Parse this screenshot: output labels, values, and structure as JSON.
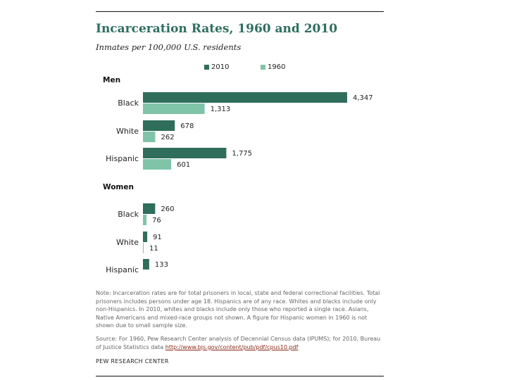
{
  "chart_data": {
    "type": "bar",
    "orientation": "horizontal",
    "title": "Incarceration Rates, 1960 and 2010",
    "subtitle": "Inmates per 100,000 U.S. residents",
    "legend": [
      "2010",
      "1960"
    ],
    "colors": {
      "2010": "#2f6e5b",
      "1960": "#7fc4a8"
    },
    "groups": [
      {
        "name": "Men",
        "categories": [
          {
            "label": "Black",
            "values": {
              "2010": 4347,
              "1960": 1313
            },
            "labels": {
              "2010": "4,347",
              "1960": "1,313"
            }
          },
          {
            "label": "White",
            "values": {
              "2010": 678,
              "1960": 262
            },
            "labels": {
              "2010": "678",
              "1960": "262"
            }
          },
          {
            "label": "Hispanic",
            "values": {
              "2010": 1775,
              "1960": 601
            },
            "labels": {
              "2010": "1,775",
              "1960": "601"
            }
          }
        ]
      },
      {
        "name": "Women",
        "categories": [
          {
            "label": "Black",
            "values": {
              "2010": 260,
              "1960": 76
            },
            "labels": {
              "2010": "260",
              "1960": "76"
            }
          },
          {
            "label": "White",
            "values": {
              "2010": 91,
              "1960": 11
            },
            "labels": {
              "2010": "91",
              "1960": "11"
            }
          },
          {
            "label": "Hispanic",
            "values": {
              "2010": 133,
              "1960": null
            },
            "labels": {
              "2010": "133",
              "1960": null
            }
          }
        ]
      }
    ],
    "xlim": [
      0,
      4347
    ]
  },
  "note": "Note: Incarceration rates are for total prisoners in local, state and federal correctional facilities. Total prisoners includes persons under age 18. Hispanics are of any race. Whites and blacks include only non-Hispanics. In 2010, whites and blacks include only those who reported a single race. Asians, Native Americans and mixed-race groups not shown. A figure for Hispanic women in 1960 is not shown due to small sample size.",
  "source": {
    "text": "Source: For 1960, Pew Research Center analysis of Decennial Census data (IPUMS); for 2010, Bureau of Justice Statistics data",
    "link": "http://www.bjs.gov/content/pub/pdf/cpus10.pdf"
  },
  "brand": "PEW RESEARCH CENTER"
}
